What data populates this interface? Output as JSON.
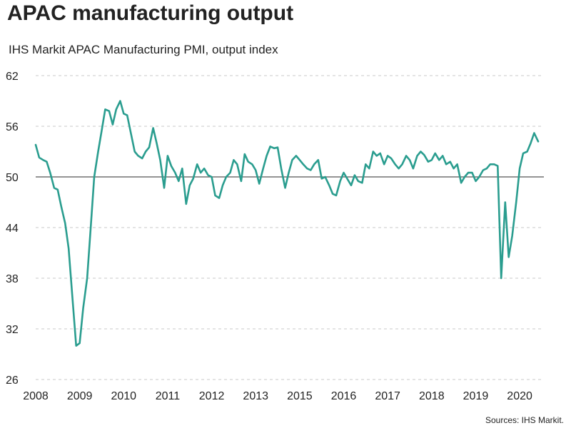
{
  "title": "APAC manufacturing output",
  "subtitle": "IHS Markit APAC Manufacturing PMI, output index",
  "source": "Sources: IHS Markit.",
  "colors": {
    "line": "#2a9d8f",
    "grid": "#c8c8c8",
    "baseline": "#555555"
  },
  "chart_data": {
    "type": "line",
    "title": "APAC manufacturing output",
    "ylabel": "",
    "xlabel": "",
    "ylim": [
      26,
      62
    ],
    "yticks": [
      62,
      56,
      50,
      44,
      38,
      32,
      26
    ],
    "grid": true,
    "reference_line": 50,
    "x_tick_labels": [
      {
        "label": "2008",
        "t": 2008.0
      },
      {
        "label": "2009",
        "t": 2009.0
      },
      {
        "label": "2010",
        "t": 2010.0
      },
      {
        "label": "2011",
        "t": 2011.0
      },
      {
        "label": "2012",
        "t": 2012.0
      },
      {
        "label": "2013",
        "t": 2013.0
      },
      {
        "label": "2015",
        "t": 2014.0
      },
      {
        "label": "2016",
        "t": 2015.0
      },
      {
        "label": "2017",
        "t": 2016.0
      },
      {
        "label": "2018",
        "t": 2017.0
      },
      {
        "label": "2019",
        "t": 2018.0
      },
      {
        "label": "2020",
        "t": 2019.0
      }
    ],
    "series": [
      {
        "values": [
          [
            2008.0,
            53.8
          ],
          [
            2008.08,
            52.3
          ],
          [
            2008.17,
            52.0
          ],
          [
            2008.25,
            51.8
          ],
          [
            2008.33,
            50.5
          ],
          [
            2008.42,
            48.7
          ],
          [
            2008.5,
            48.5
          ],
          [
            2008.58,
            46.5
          ],
          [
            2008.67,
            44.5
          ],
          [
            2008.75,
            41.5
          ],
          [
            2008.83,
            36.0
          ],
          [
            2008.92,
            30.0
          ],
          [
            2009.0,
            30.3
          ],
          [
            2009.08,
            34.5
          ],
          [
            2009.17,
            38.0
          ],
          [
            2009.25,
            44.0
          ],
          [
            2009.33,
            50.0
          ],
          [
            2009.42,
            53.0
          ],
          [
            2009.5,
            55.5
          ],
          [
            2009.58,
            58.0
          ],
          [
            2009.67,
            57.8
          ],
          [
            2009.75,
            56.2
          ],
          [
            2009.83,
            58.0
          ],
          [
            2009.92,
            59.0
          ],
          [
            2010.0,
            57.5
          ],
          [
            2010.08,
            57.3
          ],
          [
            2010.17,
            55.0
          ],
          [
            2010.25,
            53.0
          ],
          [
            2010.33,
            52.5
          ],
          [
            2010.42,
            52.2
          ],
          [
            2010.5,
            53.0
          ],
          [
            2010.58,
            53.5
          ],
          [
            2010.67,
            55.8
          ],
          [
            2010.75,
            54.0
          ],
          [
            2010.83,
            52.0
          ],
          [
            2010.92,
            48.7
          ],
          [
            2011.0,
            52.5
          ],
          [
            2011.08,
            51.3
          ],
          [
            2011.17,
            50.5
          ],
          [
            2011.25,
            49.5
          ],
          [
            2011.33,
            51.0
          ],
          [
            2011.42,
            46.8
          ],
          [
            2011.5,
            49.0
          ],
          [
            2011.58,
            49.8
          ],
          [
            2011.67,
            51.5
          ],
          [
            2011.75,
            50.5
          ],
          [
            2011.83,
            51.0
          ],
          [
            2011.92,
            50.2
          ],
          [
            2012.0,
            50.0
          ],
          [
            2012.08,
            47.8
          ],
          [
            2012.17,
            47.5
          ],
          [
            2012.25,
            49.0
          ],
          [
            2012.33,
            50.0
          ],
          [
            2012.42,
            50.5
          ],
          [
            2012.5,
            52.0
          ],
          [
            2012.58,
            51.5
          ],
          [
            2012.67,
            49.5
          ],
          [
            2012.75,
            52.7
          ],
          [
            2012.83,
            51.8
          ],
          [
            2012.92,
            51.5
          ],
          [
            2013.0,
            50.8
          ],
          [
            2013.08,
            49.2
          ],
          [
            2013.17,
            51.0
          ],
          [
            2013.25,
            52.5
          ],
          [
            2013.33,
            53.6
          ],
          [
            2013.42,
            53.4
          ],
          [
            2013.5,
            53.5
          ],
          [
            2013.58,
            51.0
          ],
          [
            2013.67,
            48.7
          ],
          [
            2013.75,
            50.5
          ],
          [
            2013.83,
            52.0
          ],
          [
            2013.92,
            52.5
          ],
          [
            2014.0,
            52.0
          ],
          [
            2014.08,
            51.5
          ],
          [
            2014.17,
            51.0
          ],
          [
            2014.25,
            50.8
          ],
          [
            2014.33,
            51.5
          ],
          [
            2014.42,
            52.0
          ],
          [
            2014.5,
            49.8
          ],
          [
            2014.58,
            50.0
          ],
          [
            2014.67,
            49.0
          ],
          [
            2014.75,
            48.0
          ],
          [
            2014.83,
            47.8
          ],
          [
            2014.92,
            49.5
          ],
          [
            2015.0,
            50.5
          ],
          [
            2015.08,
            49.8
          ],
          [
            2015.17,
            49.0
          ],
          [
            2015.25,
            50.2
          ],
          [
            2015.33,
            49.5
          ],
          [
            2015.42,
            49.3
          ],
          [
            2015.5,
            51.5
          ],
          [
            2015.58,
            51.0
          ],
          [
            2015.67,
            53.0
          ],
          [
            2015.75,
            52.5
          ],
          [
            2015.83,
            52.8
          ],
          [
            2015.92,
            51.5
          ],
          [
            2016.0,
            52.5
          ],
          [
            2016.08,
            52.2
          ],
          [
            2016.17,
            51.5
          ],
          [
            2016.25,
            51.0
          ],
          [
            2016.33,
            51.5
          ],
          [
            2016.42,
            52.5
          ],
          [
            2016.5,
            52.0
          ],
          [
            2016.58,
            51.0
          ],
          [
            2016.67,
            52.5
          ],
          [
            2016.75,
            53.0
          ],
          [
            2016.83,
            52.6
          ],
          [
            2016.92,
            51.8
          ],
          [
            2017.0,
            52.0
          ],
          [
            2017.08,
            52.8
          ],
          [
            2017.17,
            52.0
          ],
          [
            2017.25,
            52.5
          ],
          [
            2017.33,
            51.5
          ],
          [
            2017.42,
            51.8
          ],
          [
            2017.5,
            51.0
          ],
          [
            2017.58,
            51.5
          ],
          [
            2017.67,
            49.3
          ],
          [
            2017.75,
            50.0
          ],
          [
            2017.83,
            50.5
          ],
          [
            2017.92,
            50.5
          ],
          [
            2018.0,
            49.5
          ],
          [
            2018.08,
            50.0
          ],
          [
            2018.17,
            50.8
          ],
          [
            2018.25,
            51.0
          ],
          [
            2018.33,
            51.5
          ],
          [
            2018.42,
            51.5
          ],
          [
            2018.5,
            51.3
          ],
          [
            2018.58,
            38.0
          ],
          [
            2018.67,
            47.0
          ],
          [
            2018.75,
            40.5
          ],
          [
            2018.83,
            43.0
          ],
          [
            2018.92,
            47.0
          ],
          [
            2019.0,
            51.0
          ],
          [
            2019.08,
            52.8
          ],
          [
            2019.17,
            53.0
          ],
          [
            2019.25,
            54.0
          ],
          [
            2019.33,
            55.2
          ],
          [
            2019.42,
            54.2
          ]
        ]
      }
    ]
  }
}
